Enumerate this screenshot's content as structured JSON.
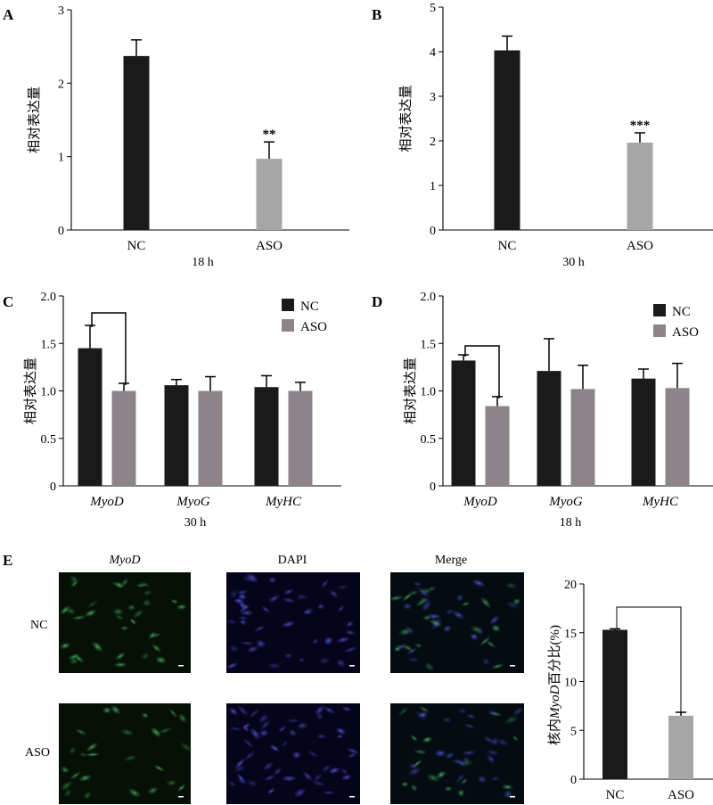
{
  "chart_data": [
    {
      "panel": "A",
      "type": "bar",
      "categories": [
        "NC",
        "ASO"
      ],
      "values": [
        2.37,
        0.97
      ],
      "errors": [
        0.22,
        0.23
      ],
      "significance": [
        "",
        "**"
      ],
      "colors": [
        "#1a1a1a",
        "#a6a6a6"
      ],
      "ylabel": "相对表达量",
      "xlabel": "18 h",
      "ylim": [
        0,
        3
      ],
      "yticks": [
        "0",
        "1",
        "2",
        "3"
      ]
    },
    {
      "panel": "B",
      "type": "bar",
      "categories": [
        "NC",
        "ASO"
      ],
      "values": [
        4.03,
        1.96
      ],
      "errors": [
        0.32,
        0.22
      ],
      "significance": [
        "",
        "***"
      ],
      "colors": [
        "#1a1a1a",
        "#a6a6a6"
      ],
      "ylabel": "相对表达量",
      "xlabel": "30 h",
      "ylim": [
        0,
        5
      ],
      "yticks": [
        "0",
        "1",
        "2",
        "3",
        "4",
        "5"
      ]
    },
    {
      "panel": "C",
      "type": "bar",
      "categories": [
        "MyoD",
        "MyoG",
        "MyHC"
      ],
      "series": [
        {
          "name": "NC",
          "values": [
            1.45,
            1.06,
            1.04
          ],
          "errors": [
            0.24,
            0.06,
            0.12
          ],
          "color": "#1a1a1a"
        },
        {
          "name": "ASO",
          "values": [
            1.0,
            1.0,
            1.0
          ],
          "errors": [
            0.08,
            0.15,
            0.09
          ],
          "color": "#8c8489"
        }
      ],
      "bracket_category": 0,
      "ylabel": "相对表达量",
      "xlabel": "30 h",
      "ylim": [
        0,
        2
      ],
      "yticks": [
        "0",
        "0.5",
        "1.0",
        "1.5",
        "2.0"
      ],
      "legend": "top-right"
    },
    {
      "panel": "D",
      "type": "bar",
      "categories": [
        "MyoD",
        "MyoG",
        "MyHC"
      ],
      "series": [
        {
          "name": "NC",
          "values": [
            1.32,
            1.21,
            1.13
          ],
          "errors": [
            0.06,
            0.34,
            0.1
          ],
          "color": "#1a1a1a"
        },
        {
          "name": "ASO",
          "values": [
            0.84,
            1.02,
            1.03
          ],
          "errors": [
            0.1,
            0.25,
            0.26
          ],
          "color": "#8c8489"
        }
      ],
      "bracket_category": 0,
      "ylabel": "相对表达量",
      "xlabel": "18 h",
      "ylim": [
        0,
        2
      ],
      "yticks": [
        "0",
        "0.5",
        "1.0",
        "1.5",
        "2.0"
      ],
      "legend": "top-right"
    },
    {
      "panel": "E",
      "type": "bar",
      "categories": [
        "NC",
        "ASO"
      ],
      "values": [
        15.3,
        6.5
      ],
      "errors": [
        0.1,
        0.35
      ],
      "colors": [
        "#1a1a1a",
        "#a6a6a6"
      ],
      "bracket": true,
      "ylabel_parts": [
        "核内",
        "MyoD",
        "百分比(%)"
      ],
      "ylim": [
        0,
        20
      ],
      "yticks": [
        "0",
        "5",
        "10",
        "15",
        "20"
      ]
    }
  ],
  "micrographs": {
    "panel": "E",
    "column_titles": [
      "MyoD",
      "DAPI",
      "Merge"
    ],
    "row_labels": [
      "NC",
      "ASO"
    ]
  }
}
